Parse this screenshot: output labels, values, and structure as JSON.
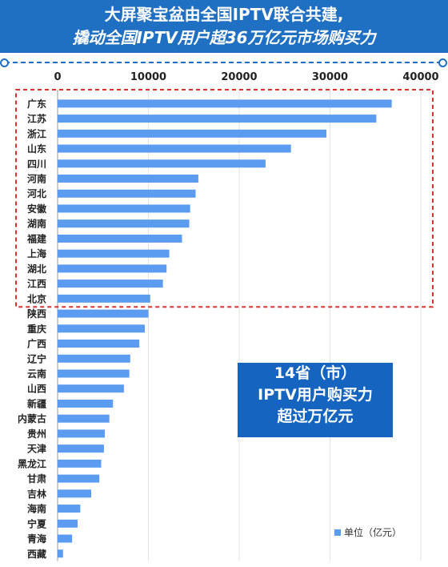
{
  "header": {
    "line1": "大屏聚宝盆由全国IPTV联合共建,",
    "line2": "撬动全国IPTV用户超36万亿元市场购买力"
  },
  "callout": {
    "line1": "14省（市）",
    "line2": "IPTV用户购买力",
    "line3": "超过万亿元"
  },
  "legend": {
    "label": "单位（亿元）"
  },
  "colors": {
    "bar": "#5b9bf0",
    "banner": "#1f6fc2",
    "highlight_box": "#d9322e",
    "callout": "#1565c0"
  },
  "chart_data": {
    "type": "bar",
    "orientation": "horizontal",
    "categories": [
      "广东",
      "江苏",
      "浙江",
      "山东",
      "四川",
      "河南",
      "河北",
      "安徽",
      "湖南",
      "福建",
      "上海",
      "湖北",
      "江西",
      "北京",
      "陕西",
      "重庆",
      "广西",
      "辽宁",
      "云南",
      "山西",
      "新疆",
      "内蒙古",
      "贵州",
      "天津",
      "黑龙江",
      "甘肃",
      "吉林",
      "海南",
      "宁夏",
      "青海",
      "西藏"
    ],
    "values": [
      36800,
      35100,
      29600,
      25700,
      22900,
      15500,
      15200,
      14600,
      14500,
      13700,
      12300,
      12000,
      11600,
      10200,
      10000,
      9600,
      9000,
      8000,
      7900,
      7300,
      6100,
      5700,
      5200,
      5100,
      4800,
      4600,
      3700,
      2500,
      2200,
      1600,
      600
    ],
    "ticks": [
      0,
      10000,
      20000,
      30000,
      40000
    ],
    "xlim": [
      0,
      40000
    ],
    "legend": [
      "单位（亿元）"
    ],
    "highlight": {
      "from": "广东",
      "to": "北京"
    }
  }
}
